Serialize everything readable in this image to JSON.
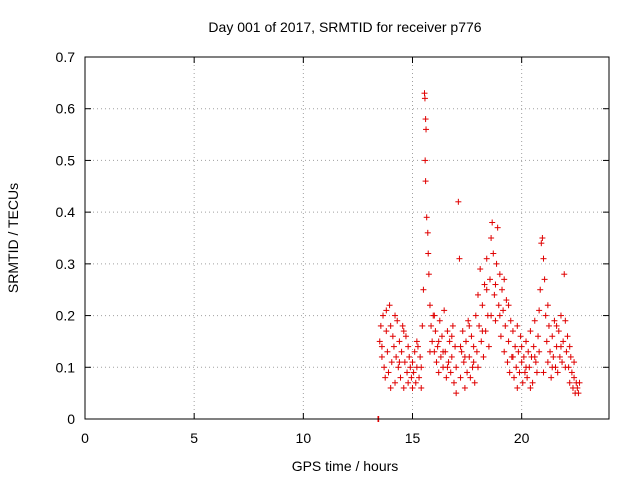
{
  "chart_data": {
    "type": "scatter",
    "title": "Day 001 of 2017, SRMTID for receiver p776",
    "xlabel": "GPS time / hours",
    "ylabel": "SRMTID / TECUs",
    "xlim": [
      0,
      24
    ],
    "ylim": [
      0,
      0.7
    ],
    "x_ticks": [
      "0",
      "5",
      "10",
      "15",
      "20"
    ],
    "y_ticks": [
      "0",
      "0.1",
      "0.2",
      "0.3",
      "0.4",
      "0.5",
      "0.6",
      "0.7"
    ],
    "grid": true,
    "marker": "plus",
    "color": "#e00000",
    "series": [
      {
        "points": [
          [
            13.42,
            0.0
          ],
          [
            13.45,
            0.0
          ],
          [
            13.5,
            0.15
          ],
          [
            13.55,
            0.18
          ],
          [
            13.6,
            0.12
          ],
          [
            13.65,
            0.2
          ],
          [
            13.7,
            0.1
          ],
          [
            13.75,
            0.08
          ],
          [
            13.8,
            0.17
          ],
          [
            13.85,
            0.13
          ],
          [
            13.9,
            0.09
          ],
          [
            13.95,
            0.22
          ],
          [
            14.0,
            0.06
          ],
          [
            14.05,
            0.11
          ],
          [
            14.1,
            0.16
          ],
          [
            14.15,
            0.14
          ],
          [
            14.2,
            0.07
          ],
          [
            14.25,
            0.12
          ],
          [
            14.3,
            0.19
          ],
          [
            14.35,
            0.1
          ],
          [
            14.4,
            0.15
          ],
          [
            14.45,
            0.08
          ],
          [
            14.5,
            0.13
          ],
          [
            14.55,
            0.18
          ],
          [
            14.6,
            0.06
          ],
          [
            14.65,
            0.11
          ],
          [
            14.7,
            0.16
          ],
          [
            14.75,
            0.09
          ],
          [
            14.8,
            0.07
          ],
          [
            14.85,
            0.12
          ],
          [
            14.9,
            0.1
          ],
          [
            14.95,
            0.08
          ],
          [
            15.0,
            0.11
          ],
          [
            15.05,
            0.09
          ],
          [
            15.1,
            0.13
          ],
          [
            15.15,
            0.07
          ],
          [
            15.2,
            0.1
          ],
          [
            15.25,
            0.14
          ],
          [
            15.3,
            0.08
          ],
          [
            15.35,
            0.12
          ],
          [
            15.4,
            0.06
          ],
          [
            15.45,
            0.18
          ],
          [
            15.5,
            0.25
          ],
          [
            15.55,
            0.63
          ],
          [
            15.57,
            0.62
          ],
          [
            15.6,
            0.58
          ],
          [
            15.62,
            0.56
          ],
          [
            15.58,
            0.5
          ],
          [
            15.6,
            0.46
          ],
          [
            15.65,
            0.39
          ],
          [
            15.7,
            0.36
          ],
          [
            15.72,
            0.32
          ],
          [
            15.75,
            0.28
          ],
          [
            15.8,
            0.22
          ],
          [
            15.85,
            0.18
          ],
          [
            15.9,
            0.15
          ],
          [
            15.95,
            0.2
          ],
          [
            16.0,
            0.13
          ],
          [
            16.05,
            0.17
          ],
          [
            16.1,
            0.11
          ],
          [
            16.15,
            0.14
          ],
          [
            16.2,
            0.09
          ],
          [
            16.25,
            0.19
          ],
          [
            16.3,
            0.12
          ],
          [
            16.35,
            0.16
          ],
          [
            16.4,
            0.1
          ],
          [
            16.45,
            0.21
          ],
          [
            16.5,
            0.13
          ],
          [
            16.55,
            0.08
          ],
          [
            16.6,
            0.17
          ],
          [
            16.65,
            0.11
          ],
          [
            16.7,
            0.15
          ],
          [
            16.75,
            0.09
          ],
          [
            16.8,
            0.12
          ],
          [
            16.85,
            0.18
          ],
          [
            16.9,
            0.07
          ],
          [
            16.95,
            0.14
          ],
          [
            17.0,
            0.1
          ],
          [
            17.1,
            0.42
          ],
          [
            17.15,
            0.31
          ],
          [
            17.2,
            0.08
          ],
          [
            17.25,
            0.13
          ],
          [
            17.3,
            0.17
          ],
          [
            17.35,
            0.11
          ],
          [
            17.4,
            0.06
          ],
          [
            17.45,
            0.15
          ],
          [
            17.5,
            0.09
          ],
          [
            17.55,
            0.19
          ],
          [
            17.6,
            0.12
          ],
          [
            17.65,
            0.08
          ],
          [
            17.7,
            0.16
          ],
          [
            17.75,
            0.1
          ],
          [
            17.8,
            0.14
          ],
          [
            17.85,
            0.07
          ],
          [
            17.9,
            0.2
          ],
          [
            17.95,
            0.13
          ],
          [
            18.0,
            0.24
          ],
          [
            18.05,
            0.18
          ],
          [
            18.1,
            0.29
          ],
          [
            18.15,
            0.15
          ],
          [
            18.2,
            0.22
          ],
          [
            18.25,
            0.12
          ],
          [
            18.3,
            0.26
          ],
          [
            18.35,
            0.17
          ],
          [
            18.4,
            0.31
          ],
          [
            18.45,
            0.2
          ],
          [
            18.5,
            0.14
          ],
          [
            18.55,
            0.27
          ],
          [
            18.6,
            0.35
          ],
          [
            18.65,
            0.38
          ],
          [
            18.7,
            0.32
          ],
          [
            18.75,
            0.24
          ],
          [
            18.8,
            0.19
          ],
          [
            18.85,
            0.3
          ],
          [
            18.9,
            0.37
          ],
          [
            18.95,
            0.22
          ],
          [
            19.0,
            0.28
          ],
          [
            19.05,
            0.16
          ],
          [
            19.1,
            0.25
          ],
          [
            19.15,
            0.21
          ],
          [
            19.2,
            0.13
          ],
          [
            19.25,
            0.18
          ],
          [
            19.3,
            0.23
          ],
          [
            19.35,
            0.11
          ],
          [
            19.4,
            0.15
          ],
          [
            19.45,
            0.09
          ],
          [
            19.5,
            0.19
          ],
          [
            19.55,
            0.12
          ],
          [
            19.6,
            0.17
          ],
          [
            19.65,
            0.08
          ],
          [
            19.7,
            0.14
          ],
          [
            19.75,
            0.1
          ],
          [
            19.8,
            0.06
          ],
          [
            19.85,
            0.13
          ],
          [
            19.9,
            0.09
          ],
          [
            19.95,
            0.16
          ],
          [
            20.0,
            0.11
          ],
          [
            20.05,
            0.07
          ],
          [
            20.1,
            0.12
          ],
          [
            20.15,
            0.09
          ],
          [
            20.2,
            0.15
          ],
          [
            20.25,
            0.08
          ],
          [
            20.3,
            0.13
          ],
          [
            20.35,
            0.1
          ],
          [
            20.4,
            0.17
          ],
          [
            20.45,
            0.12
          ],
          [
            20.5,
            0.07
          ],
          [
            20.55,
            0.14
          ],
          [
            20.6,
            0.19
          ],
          [
            20.65,
            0.11
          ],
          [
            20.7,
            0.09
          ],
          [
            20.75,
            0.16
          ],
          [
            20.8,
            0.21
          ],
          [
            20.85,
            0.25
          ],
          [
            20.9,
            0.34
          ],
          [
            20.95,
            0.35
          ],
          [
            21.0,
            0.31
          ],
          [
            21.05,
            0.27
          ],
          [
            21.1,
            0.2
          ],
          [
            21.15,
            0.15
          ],
          [
            21.2,
            0.11
          ],
          [
            21.25,
            0.18
          ],
          [
            21.3,
            0.13
          ],
          [
            21.35,
            0.08
          ],
          [
            21.4,
            0.16
          ],
          [
            21.45,
            0.12
          ],
          [
            21.5,
            0.19
          ],
          [
            21.55,
            0.1
          ],
          [
            21.6,
            0.14
          ],
          [
            21.65,
            0.09
          ],
          [
            21.7,
            0.17
          ],
          [
            21.75,
            0.12
          ],
          [
            21.8,
            0.2
          ],
          [
            21.85,
            0.11
          ],
          [
            21.9,
            0.15
          ],
          [
            21.95,
            0.28
          ],
          [
            22.0,
            0.19
          ],
          [
            22.05,
            0.13
          ],
          [
            22.1,
            0.16
          ],
          [
            22.15,
            0.1
          ],
          [
            22.2,
            0.07
          ],
          [
            22.25,
            0.12
          ],
          [
            22.3,
            0.09
          ],
          [
            22.35,
            0.06
          ],
          [
            22.4,
            0.08
          ],
          [
            22.45,
            0.05
          ],
          [
            22.5,
            0.07
          ],
          [
            22.55,
            0.06
          ],
          [
            22.6,
            0.05
          ],
          [
            22.65,
            0.07
          ],
          [
            13.6,
            0.14
          ],
          [
            13.8,
            0.21
          ],
          [
            14.0,
            0.18
          ],
          [
            14.2,
            0.2
          ],
          [
            14.4,
            0.11
          ],
          [
            14.6,
            0.17
          ],
          [
            14.8,
            0.14
          ],
          [
            15.0,
            0.06
          ],
          [
            15.2,
            0.15
          ],
          [
            15.4,
            0.1
          ],
          [
            15.8,
            0.13
          ],
          [
            16.0,
            0.2
          ],
          [
            16.2,
            0.15
          ],
          [
            16.4,
            0.13
          ],
          [
            16.6,
            0.1
          ],
          [
            16.8,
            0.16
          ],
          [
            17.0,
            0.05
          ],
          [
            17.2,
            0.14
          ],
          [
            17.4,
            0.12
          ],
          [
            17.6,
            0.18
          ],
          [
            17.8,
            0.11
          ],
          [
            18.0,
            0.1
          ],
          [
            18.2,
            0.17
          ],
          [
            18.4,
            0.25
          ],
          [
            18.6,
            0.2
          ],
          [
            18.8,
            0.26
          ],
          [
            19.0,
            0.2
          ],
          [
            19.2,
            0.27
          ],
          [
            19.4,
            0.22
          ],
          [
            19.6,
            0.12
          ],
          [
            19.8,
            0.18
          ],
          [
            20.0,
            0.14
          ],
          [
            20.2,
            0.1
          ],
          [
            20.4,
            0.06
          ],
          [
            20.6,
            0.12
          ],
          [
            20.8,
            0.13
          ],
          [
            21.0,
            0.09
          ],
          [
            21.2,
            0.22
          ],
          [
            21.4,
            0.1
          ],
          [
            21.6,
            0.18
          ],
          [
            21.8,
            0.14
          ],
          [
            22.0,
            0.1
          ],
          [
            22.2,
            0.14
          ],
          [
            22.4,
            0.11
          ]
        ]
      }
    ]
  }
}
